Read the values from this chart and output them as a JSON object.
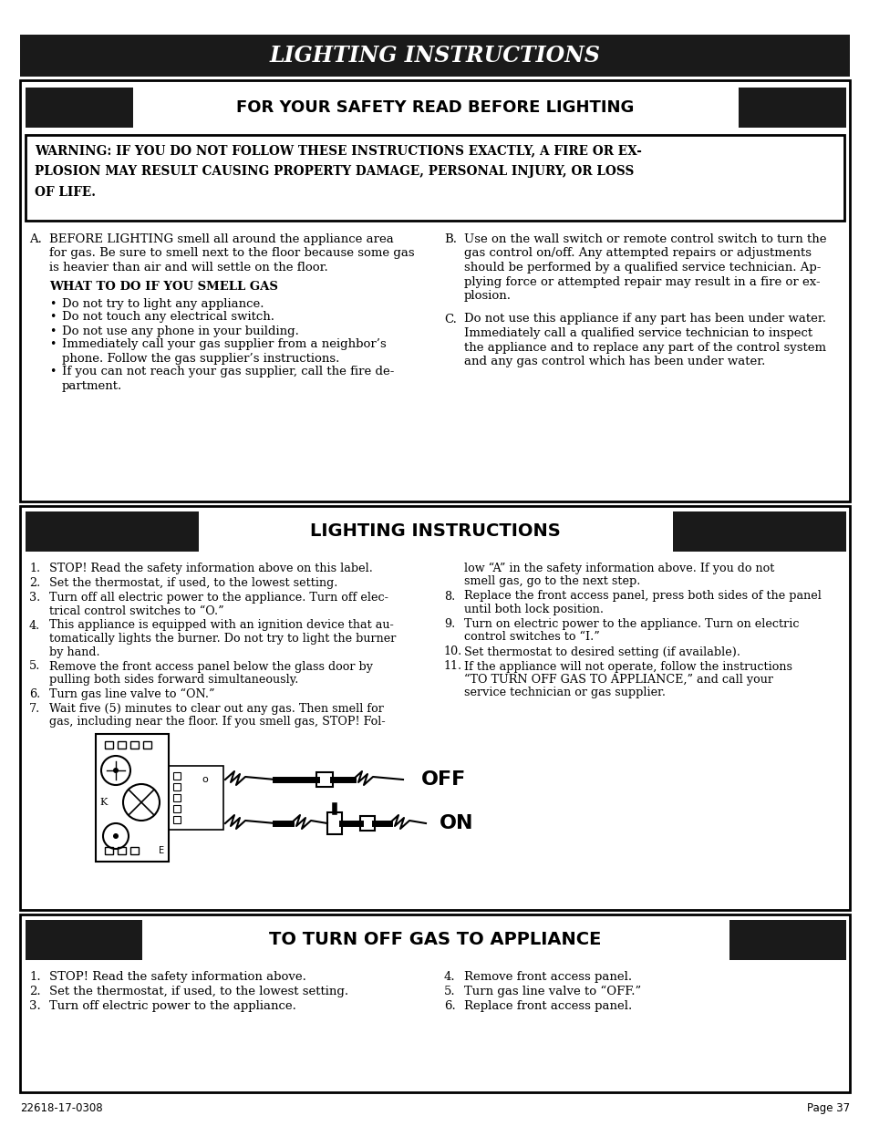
{
  "page_bg": "#ffffff",
  "header_bg": "#1a1a1a",
  "header_text": "LIGHTING INSTRUCTIONS",
  "header_text_color": "#ffffff",
  "safety_header_text": "FOR YOUR SAFETY READ BEFORE LIGHTING",
  "warning_line1": "WARNING: IF YOU DO NOT FOLLOW THESE INSTRUCTIONS EXACTLY, A FIRE OR EX-",
  "warning_line2": "PLOSION MAY RESULT CAUSING PROPERTY DAMAGE, PERSONAL INJURY, OR LOSS",
  "warning_line3": "OF LIFE.",
  "section_a_label": "A.",
  "section_a_lines": [
    "BEFORE LIGHTING smell all around the appliance area",
    "for gas. Be sure to smell next to the floor because some gas",
    "is heavier than air and will settle on the floor."
  ],
  "smell_gas_title": "WHAT TO DO IF YOU SMELL GAS",
  "smell_gas_bullets": [
    "Do not try to light any appliance.",
    "Do not touch any electrical switch.",
    "Do not use any phone in your building.",
    "Immediately call your gas supplier from a neighbor’s",
    "phone. Follow the gas supplier’s instructions.",
    "If you can not reach your gas supplier, call the fire de-",
    "partment."
  ],
  "smell_gas_indent": [
    0,
    0,
    0,
    0,
    1,
    0,
    1
  ],
  "section_b_label": "B.",
  "section_b_lines": [
    "Use on the wall switch or remote control switch to turn the",
    "gas control on/off. Any attempted repairs or adjustments",
    "should be performed by a qualified service technician. Ap-",
    "plying force or attempted repair may result in a fire or ex-",
    "plosion."
  ],
  "section_c_label": "C.",
  "section_c_lines": [
    "Do not use this appliance if any part has been under water.",
    "Immediately call a qualified service technician to inspect",
    "the appliance and to replace any part of the control system",
    "and any gas control which has been under water."
  ],
  "lighting_header_text": "LIGHTING INSTRUCTIONS",
  "lighting_steps_left": [
    [
      "1.",
      "STOP! Read the safety information above on this label."
    ],
    [
      "2.",
      "Set the thermostat, if used, to the lowest setting."
    ],
    [
      "3.",
      "Turn off all electric power to the appliance. Turn off elec-",
      "trical control switches to “O.”"
    ],
    [
      "4.",
      "This appliance is equipped with an ignition device that au-",
      "tomatically lights the burner. Do not try to light the burner",
      "by hand."
    ],
    [
      "5.",
      "Remove the front access panel below the glass door by",
      "pulling both sides forward simultaneously."
    ],
    [
      "6.",
      "Turn gas line valve to “ON.”"
    ],
    [
      "7.",
      "Wait five (5) minutes to clear out any gas. Then smell for",
      "gas, including near the floor. If you smell gas, STOP! Fol-"
    ]
  ],
  "lighting_steps_right": [
    [
      "",
      "low “A” in the safety information above. If you do not",
      "smell gas, go to the next step."
    ],
    [
      "8.",
      "Replace the front access panel, press both sides of the panel",
      "until both lock position."
    ],
    [
      "9.",
      "Turn on electric power to the appliance. Turn on electric",
      "control switches to “I.”"
    ],
    [
      "10.",
      "Set thermostat to desired setting (if available)."
    ],
    [
      "11.",
      "If the appliance will not operate, follow the instructions",
      "“TO TURN OFF GAS TO APPLIANCE,” and call your",
      "service technician or gas supplier."
    ]
  ],
  "off_label": "OFF",
  "on_label": "ON",
  "turn_off_header": "TO TURN OFF GAS TO APPLIANCE",
  "turn_off_left": [
    [
      "1.",
      "STOP! Read the safety information above."
    ],
    [
      "2.",
      "Set the thermostat, if used, to the lowest setting."
    ],
    [
      "3.",
      "Turn off electric power to the appliance."
    ]
  ],
  "turn_off_right": [
    [
      "4.",
      "Remove front access panel."
    ],
    [
      "5.",
      "Turn gas line valve to “OFF.”"
    ],
    [
      "6.",
      "Replace front access panel."
    ]
  ],
  "footer_left": "22618-17-0308",
  "footer_right": "Page 37"
}
